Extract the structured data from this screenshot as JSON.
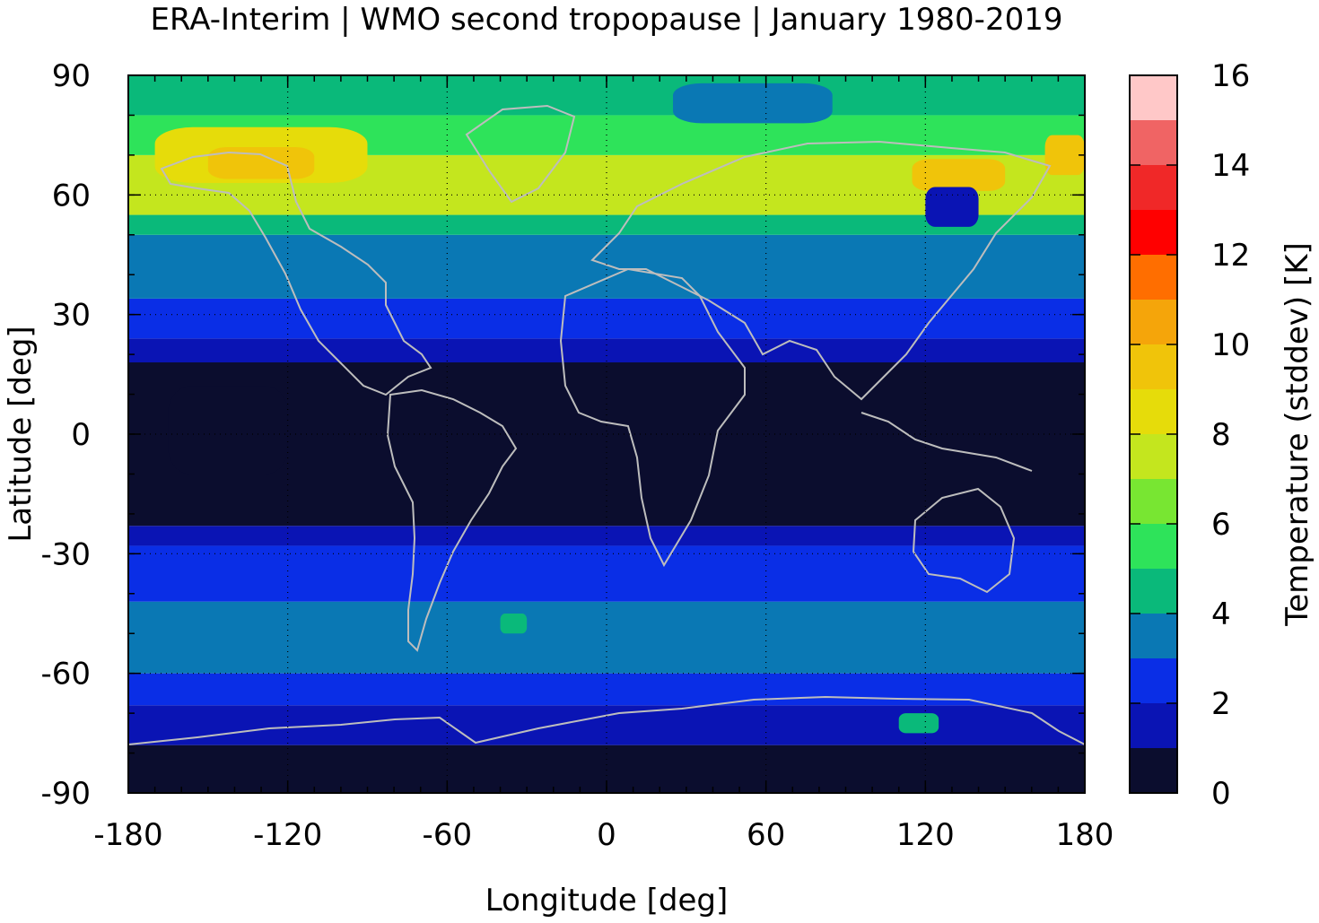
{
  "title": "ERA-Interim | WMO second tropopause | January 1980-2019",
  "chart_data": {
    "type": "heatmap",
    "title": "ERA-Interim | WMO second tropopause | January 1980-2019",
    "xlabel": "Longitude [deg]",
    "ylabel": "Latitude [deg]",
    "xlim": [
      -180,
      180
    ],
    "ylim": [
      -90,
      90
    ],
    "xticks": [
      "-180",
      "-120",
      "-60",
      "0",
      "60",
      "120",
      "180"
    ],
    "yticks": [
      "90",
      "60",
      "30",
      "0",
      "-30",
      "-60",
      "-90"
    ],
    "grid": "dotted",
    "colorbar": {
      "label": "Temperature (stddev) [K]",
      "ticks": [
        "0",
        "2",
        "4",
        "6",
        "8",
        "10",
        "12",
        "14",
        "16"
      ],
      "range": [
        0,
        16
      ],
      "step": 1,
      "colors": [
        "#0b0d2e",
        "#0a14b4",
        "#0a2ee6",
        "#0a78b4",
        "#0ab97a",
        "#2ee35a",
        "#78e632",
        "#c4e61e",
        "#e6dc0a",
        "#f0c40a",
        "#f5a50a",
        "#ff6e00",
        "#ff0000",
        "#f02828",
        "#f06464",
        "#ffc8c8"
      ]
    },
    "latitude_bands": [
      {
        "lat": [
          -90,
          -78
        ],
        "value": 0.5
      },
      {
        "lat": [
          -78,
          -68
        ],
        "value": 1.6
      },
      {
        "lat": [
          -68,
          -60
        ],
        "value": 2.6
      },
      {
        "lat": [
          -60,
          -42
        ],
        "value": 3.5
      },
      {
        "lat": [
          -42,
          -28
        ],
        "value": 2.5
      },
      {
        "lat": [
          -28,
          -23
        ],
        "value": 1.5
      },
      {
        "lat": [
          -23,
          18
        ],
        "value": 0.5
      },
      {
        "lat": [
          18,
          24
        ],
        "value": 1.5
      },
      {
        "lat": [
          24,
          34
        ],
        "value": 2.5
      },
      {
        "lat": [
          34,
          50
        ],
        "value": 3.5
      },
      {
        "lat": [
          50,
          55
        ],
        "value": 4.5
      },
      {
        "lat": [
          55,
          63
        ],
        "value": 7.4
      },
      {
        "lat": [
          63,
          70
        ],
        "value": 7.6
      },
      {
        "lat": [
          70,
          80
        ],
        "value": 5.5
      },
      {
        "lat": [
          80,
          90
        ],
        "value": 4.5
      }
    ],
    "patches": [
      {
        "lon": [
          -170,
          -90
        ],
        "lat": [
          63,
          77
        ],
        "value": 8.5
      },
      {
        "lon": [
          -150,
          -110
        ],
        "lat": [
          64,
          72
        ],
        "value": 9.2
      },
      {
        "lon": [
          115,
          150
        ],
        "lat": [
          61,
          69
        ],
        "value": 9.0
      },
      {
        "lon": [
          165,
          180
        ],
        "lat": [
          65,
          75
        ],
        "value": 9.0
      },
      {
        "lon": [
          120,
          140
        ],
        "lat": [
          52,
          62
        ],
        "value": 1.6
      },
      {
        "lon": [
          25,
          85
        ],
        "lat": [
          78,
          88
        ],
        "value": 3.6
      },
      {
        "lon": [
          -40,
          -30
        ],
        "lat": [
          -50,
          -45
        ],
        "value": 4.5
      },
      {
        "lon": [
          110,
          125
        ],
        "lat": [
          -75,
          -70
        ],
        "value": 4.5
      },
      {
        "lon": [
          -165,
          -120
        ],
        "lat": [
          -10,
          12
        ],
        "value": 0.5
      }
    ]
  }
}
